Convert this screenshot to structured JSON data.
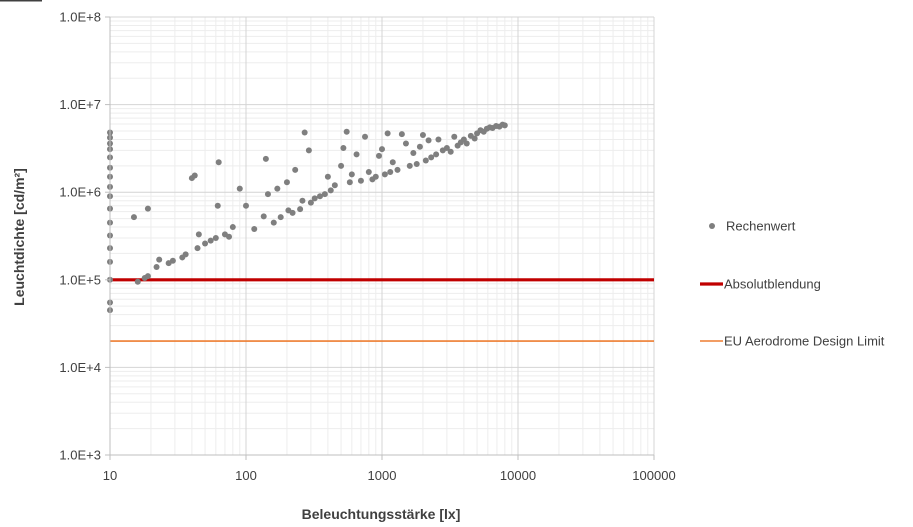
{
  "chart_data": {
    "type": "scatter",
    "title": "",
    "xlabel": "Beleuchtungsstärke [lx]",
    "ylabel": "Leuchtdichte [cd/m²]",
    "x_scale": "log",
    "y_scale": "log",
    "xlim": [
      10,
      100000
    ],
    "ylim": [
      1000,
      100000000
    ],
    "x_tick_labels": [
      "10",
      "100",
      "1000",
      "10000",
      "100000"
    ],
    "y_tick_labels": [
      "1.0E+3",
      "1.0E+4",
      "1.0E+5",
      "1.0E+6",
      "1.0E+7",
      "1.0E+8"
    ],
    "grid": true,
    "legend_position": "right",
    "series": [
      {
        "name": "Rechenwert",
        "type": "scatter",
        "color": "#7f7f7f",
        "points": [
          [
            10,
            45000
          ],
          [
            10,
            55000
          ],
          [
            10,
            100000
          ],
          [
            10,
            160000
          ],
          [
            10,
            230000
          ],
          [
            10,
            320000
          ],
          [
            10,
            450000
          ],
          [
            10,
            650000
          ],
          [
            10,
            900000
          ],
          [
            10,
            1150000
          ],
          [
            10,
            1500000
          ],
          [
            10,
            1900000
          ],
          [
            10,
            2500000
          ],
          [
            10,
            3100000
          ],
          [
            10,
            3600000
          ],
          [
            10,
            4200000
          ],
          [
            10,
            4800000
          ],
          [
            15,
            520000
          ],
          [
            16,
            95000
          ],
          [
            18,
            105000
          ],
          [
            19,
            110000
          ],
          [
            19,
            650000
          ],
          [
            22,
            140000
          ],
          [
            23,
            170000
          ],
          [
            27,
            155000
          ],
          [
            29,
            165000
          ],
          [
            34,
            180000
          ],
          [
            36,
            195000
          ],
          [
            40,
            1450000
          ],
          [
            42,
            1550000
          ],
          [
            44,
            230000
          ],
          [
            45,
            330000
          ],
          [
            50,
            260000
          ],
          [
            55,
            280000
          ],
          [
            60,
            300000
          ],
          [
            62,
            700000
          ],
          [
            63,
            2200000
          ],
          [
            70,
            330000
          ],
          [
            75,
            310000
          ],
          [
            80,
            400000
          ],
          [
            90,
            1100000
          ],
          [
            100,
            700000
          ],
          [
            115,
            380000
          ],
          [
            135,
            530000
          ],
          [
            140,
            2400000
          ],
          [
            145,
            950000
          ],
          [
            160,
            450000
          ],
          [
            170,
            1100000
          ],
          [
            180,
            520000
          ],
          [
            200,
            1300000
          ],
          [
            205,
            620000
          ],
          [
            220,
            580000
          ],
          [
            230,
            1800000
          ],
          [
            250,
            640000
          ],
          [
            260,
            800000
          ],
          [
            270,
            4800000
          ],
          [
            290,
            3000000
          ],
          [
            300,
            760000
          ],
          [
            320,
            850000
          ],
          [
            350,
            900000
          ],
          [
            380,
            950000
          ],
          [
            400,
            1500000
          ],
          [
            420,
            1050000
          ],
          [
            450,
            1200000
          ],
          [
            500,
            2000000
          ],
          [
            520,
            3200000
          ],
          [
            550,
            4900000
          ],
          [
            580,
            1300000
          ],
          [
            600,
            1600000
          ],
          [
            650,
            2700000
          ],
          [
            700,
            1350000
          ],
          [
            750,
            4300000
          ],
          [
            800,
            1700000
          ],
          [
            850,
            1400000
          ],
          [
            900,
            1500000
          ],
          [
            950,
            2600000
          ],
          [
            1000,
            3100000
          ],
          [
            1050,
            1600000
          ],
          [
            1100,
            4700000
          ],
          [
            1150,
            1700000
          ],
          [
            1200,
            2200000
          ],
          [
            1300,
            1800000
          ],
          [
            1400,
            4600000
          ],
          [
            1500,
            3600000
          ],
          [
            1600,
            2000000
          ],
          [
            1700,
            2800000
          ],
          [
            1800,
            2100000
          ],
          [
            1900,
            3300000
          ],
          [
            2000,
            4500000
          ],
          [
            2100,
            2300000
          ],
          [
            2200,
            3900000
          ],
          [
            2300,
            2500000
          ],
          [
            2500,
            2700000
          ],
          [
            2600,
            4000000
          ],
          [
            2800,
            3000000
          ],
          [
            3000,
            3200000
          ],
          [
            3200,
            2900000
          ],
          [
            3400,
            4300000
          ],
          [
            3600,
            3400000
          ],
          [
            3800,
            3700000
          ],
          [
            4000,
            4000000
          ],
          [
            4200,
            3600000
          ],
          [
            4500,
            4400000
          ],
          [
            4800,
            4100000
          ],
          [
            5000,
            4700000
          ],
          [
            5300,
            5100000
          ],
          [
            5600,
            4900000
          ],
          [
            5900,
            5300000
          ],
          [
            6200,
            5500000
          ],
          [
            6500,
            5400000
          ],
          [
            6900,
            5700000
          ],
          [
            7300,
            5600000
          ],
          [
            7700,
            5900000
          ],
          [
            8000,
            5800000
          ]
        ]
      },
      {
        "name": "Absolutblendung",
        "type": "line",
        "color": "#c00000",
        "points": [
          [
            10,
            100000
          ],
          [
            100000,
            100000
          ]
        ]
      },
      {
        "name": "EU Aerodrome Design Limit",
        "type": "line",
        "color": "#ed7d31",
        "points": [
          [
            10,
            20000
          ],
          [
            100000,
            20000
          ]
        ]
      }
    ]
  }
}
